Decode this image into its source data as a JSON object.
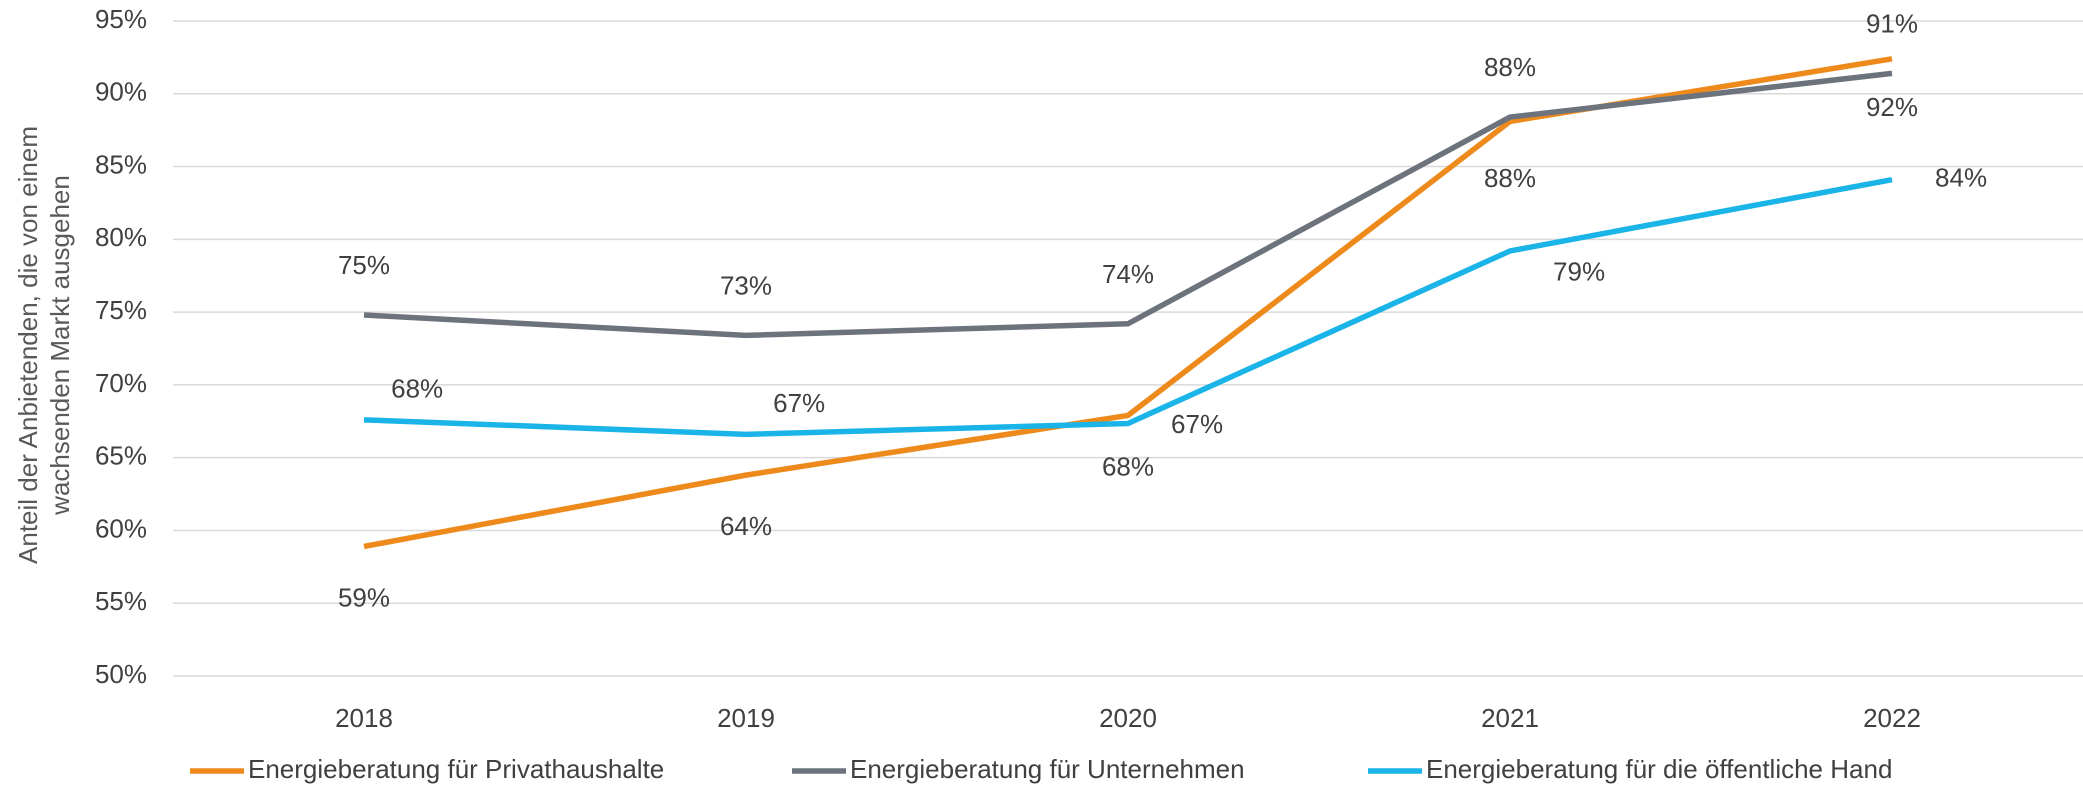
{
  "chart_data": {
    "type": "line",
    "ylabel": [
      "Anteil der Anbietenden, die von einem",
      "wachsenden Markt ausgehen"
    ],
    "categories": [
      "2018",
      "2019",
      "2020",
      "2021",
      "2022"
    ],
    "series": [
      {
        "name": "Energieberatung für Privathaushalte",
        "color": "#ee8a1b",
        "values": [
          58.9,
          63.8,
          67.9,
          88.1,
          92.4
        ],
        "value_labels": [
          "59%",
          "64%",
          "68%",
          "88%",
          "92%"
        ]
      },
      {
        "name": "Energieberatung für Unternehmen",
        "color": "#6c737d",
        "values": [
          74.8,
          73.4,
          74.2,
          88.4,
          91.4
        ],
        "value_labels": [
          "75%",
          "73%",
          "74%",
          "88%",
          "91%"
        ]
      },
      {
        "name": "Energieberatung für die öffentliche Hand",
        "color": "#1ab4e8",
        "values": [
          67.6,
          66.6,
          67.35,
          79.2,
          84.1
        ],
        "value_labels": [
          "68%",
          "67%",
          "67%",
          "79%",
          "84%"
        ]
      }
    ],
    "ylim": [
      50,
      95
    ],
    "yticks": [
      {
        "value": 50,
        "label": "50%"
      },
      {
        "value": 55,
        "label": "55%"
      },
      {
        "value": 60,
        "label": "60%"
      },
      {
        "value": 65,
        "label": "65%"
      },
      {
        "value": 70,
        "label": "70%"
      },
      {
        "value": 75,
        "label": "75%"
      },
      {
        "value": 80,
        "label": "80%"
      },
      {
        "value": 85,
        "label": "85%"
      },
      {
        "value": 90,
        "label": "90%"
      },
      {
        "value": 95,
        "label": "95%"
      }
    ],
    "grid": true,
    "legend": "bottom"
  }
}
